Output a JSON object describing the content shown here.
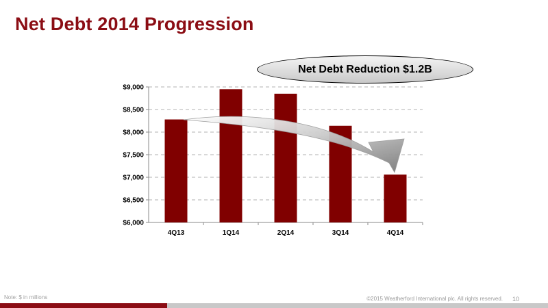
{
  "slide": {
    "title": "Net Debt 2014 Progression",
    "callout": "Net Debt Reduction $1.2B",
    "note": "Note: $ in millions",
    "copyright": "©2015 Weatherford International plc.  All rights reserved.",
    "page_number": "10"
  },
  "colors": {
    "title": "#8b0d14",
    "bar": "#800000",
    "gridline": "#b0b0b0",
    "arrow": "#a8a8a8",
    "footer_accent": "#8b0d14",
    "footer_grey": "#c8c8c8"
  },
  "chart_data": {
    "type": "bar",
    "categories": [
      "4Q13",
      "1Q14",
      "2Q14",
      "3Q14",
      "4Q14"
    ],
    "values": [
      8280,
      8950,
      8850,
      8140,
      7060
    ],
    "ylim": [
      6000,
      9000
    ],
    "yticks": [
      6000,
      6500,
      7000,
      7500,
      8000,
      8500,
      9000
    ],
    "ytick_labels": [
      "$6,000",
      "$6,500",
      "$7,000",
      "$7,500",
      "$8,000",
      "$8,500",
      "$9,000"
    ],
    "grid": true,
    "annotation": "Net Debt Reduction $1.2B"
  }
}
